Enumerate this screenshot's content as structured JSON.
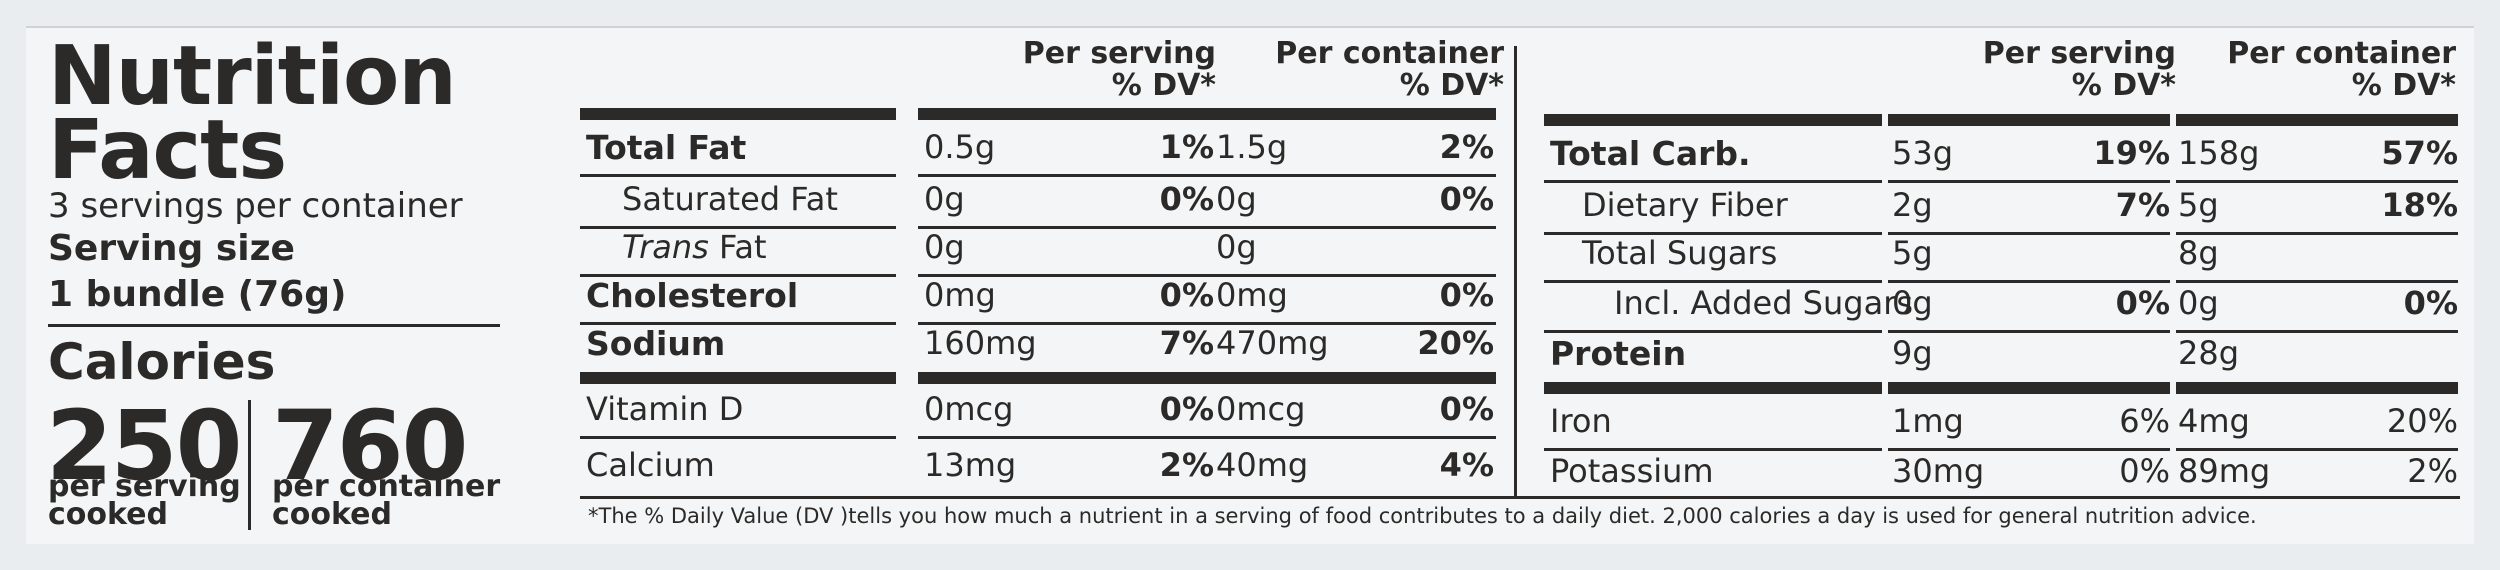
{
  "title_line1": "Nutrition",
  "title_line2": "Facts",
  "servings_per_container": "3 servings per container",
  "serving_size_label": "Serving size",
  "serving_size_value": "1 bundle (76g)",
  "calories_label": "Calories",
  "calories_per_serving": "250",
  "calories_per_container": "760",
  "per_serving_sub1": "per serving",
  "per_serving_sub2": "cooked",
  "per_container_sub1": "per container",
  "per_container_sub2": "cooked",
  "col_per_serving": "Per serving",
  "col_per_container": "Per container",
  "col_dv": "% DV*",
  "left_rows": [
    {
      "label": "Total Fat",
      "s_amt": "0.5g",
      "s_dv": "1%",
      "c_amt": "1.5g",
      "c_dv": "2%"
    },
    {
      "label": "Saturated Fat",
      "s_amt": "0g",
      "s_dv": "0%",
      "c_amt": "0g",
      "c_dv": "0%"
    },
    {
      "label_italic": "Trans",
      "label_rest": " Fat",
      "s_amt": "0g",
      "s_dv": "",
      "c_amt": "0g",
      "c_dv": ""
    },
    {
      "label": "Cholesterol",
      "s_amt": "0mg",
      "s_dv": "0%",
      "c_amt": "0mg",
      "c_dv": "0%"
    },
    {
      "label": "Sodium",
      "s_amt": "160mg",
      "s_dv": "7%",
      "c_amt": "470mg",
      "c_dv": "20%"
    },
    {
      "label": "Vitamin D",
      "s_amt": "0mcg",
      "s_dv": "0%",
      "c_amt": "0mcg",
      "c_dv": "0%"
    },
    {
      "label": "Calcium",
      "s_amt": "13mg",
      "s_dv": "2%",
      "c_amt": "40mg",
      "c_dv": "4%"
    }
  ],
  "right_rows": [
    {
      "label": "Total Carb.",
      "s_amt": "53g",
      "s_dv": "19%",
      "c_amt": "158g",
      "c_dv": "57%"
    },
    {
      "label": "Dietary Fiber",
      "s_amt": "2g",
      "s_dv": "7%",
      "c_amt": "5g",
      "c_dv": "18%"
    },
    {
      "label": "Total Sugars",
      "s_amt": "5g",
      "s_dv": "",
      "c_amt": "8g",
      "c_dv": ""
    },
    {
      "label": "Incl. Added Sugars",
      "s_amt": "0g",
      "s_dv": "0%",
      "c_amt": "0g",
      "c_dv": "0%"
    },
    {
      "label": "Protein",
      "s_amt": "9g",
      "s_dv": "",
      "c_amt": "28g",
      "c_dv": ""
    },
    {
      "label": "Iron",
      "s_amt": "1mg",
      "s_dv": "6%",
      "c_amt": "4mg",
      "c_dv": "20%"
    },
    {
      "label": "Potassium",
      "s_amt": "30mg",
      "s_dv": "0%",
      "c_amt": "89mg",
      "c_dv": "2%"
    }
  ],
  "footnote": "*The % Daily Value (DV )tells you how much a nutrient in a serving of food contributes to a daily diet. 2,000 calories a day is used for general nutrition advice."
}
